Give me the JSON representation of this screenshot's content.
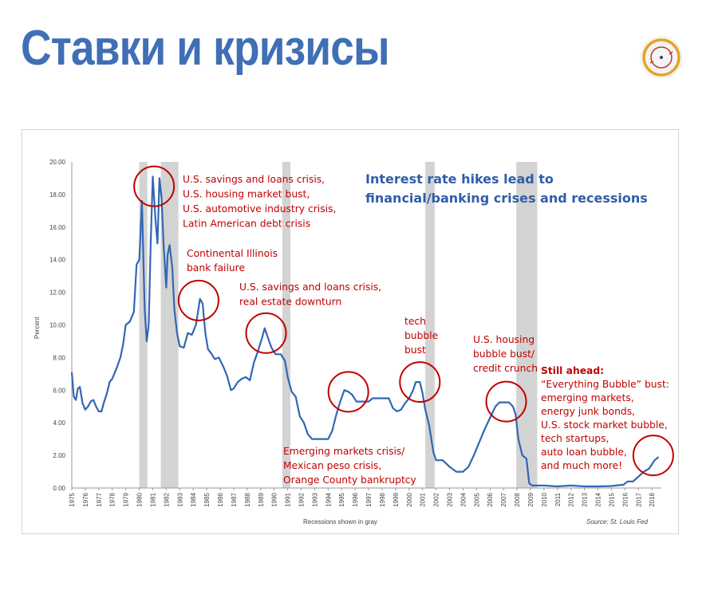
{
  "slide": {
    "title": "Ставки и кризисы"
  },
  "chart_data": {
    "type": "line",
    "title": "Interest rate hikes lead to financial/banking crises and recessions",
    "title_lines": [
      "Interest rate hikes lead to",
      "financial/banking crises and recessions"
    ],
    "ylabel": "Percent",
    "xlabel": "Recessions shown in gray",
    "source": "Source: St. Louis Fed",
    "ylim": [
      0,
      20
    ],
    "xlim": [
      1975,
      2018.7
    ],
    "yticks": [
      "0.00",
      "2.00",
      "4.00",
      "6.00",
      "8.00",
      "10.00",
      "12.00",
      "14.00",
      "16.00",
      "18.00",
      "20.00"
    ],
    "xticks": [
      "1975",
      "1976",
      "1977",
      "1978",
      "1979",
      "1980",
      "1981",
      "1982",
      "1983",
      "1984",
      "1985",
      "1986",
      "1987",
      "1988",
      "1989",
      "1990",
      "1991",
      "1992",
      "1993",
      "1994",
      "1995",
      "1996",
      "1997",
      "1998",
      "1999",
      "2000",
      "2001",
      "2002",
      "2003",
      "2004",
      "2005",
      "2006",
      "2007",
      "2008",
      "2009",
      "2010",
      "2011",
      "2012",
      "2013",
      "2014",
      "2015",
      "2016",
      "2017",
      "2018"
    ],
    "grid": false,
    "recessions": [
      [
        1980.0,
        1980.6
      ],
      [
        1981.6,
        1982.9
      ],
      [
        1990.6,
        1991.2
      ],
      [
        2001.2,
        2001.9
      ],
      [
        2007.95,
        2009.5
      ]
    ],
    "series": [
      {
        "color": "#3366b3",
        "points": [
          [
            1975.0,
            7.1
          ],
          [
            1975.15,
            5.6
          ],
          [
            1975.3,
            5.4
          ],
          [
            1975.45,
            6.1
          ],
          [
            1975.6,
            6.2
          ],
          [
            1975.8,
            5.2
          ],
          [
            1976.0,
            4.8
          ],
          [
            1976.2,
            5.0
          ],
          [
            1976.4,
            5.3
          ],
          [
            1976.6,
            5.4
          ],
          [
            1976.8,
            5.0
          ],
          [
            1977.0,
            4.7
          ],
          [
            1977.2,
            4.7
          ],
          [
            1977.4,
            5.3
          ],
          [
            1977.6,
            5.8
          ],
          [
            1977.8,
            6.5
          ],
          [
            1978.0,
            6.7
          ],
          [
            1978.3,
            7.3
          ],
          [
            1978.6,
            8.0
          ],
          [
            1978.8,
            8.8
          ],
          [
            1979.0,
            10.0
          ],
          [
            1979.3,
            10.2
          ],
          [
            1979.6,
            10.8
          ],
          [
            1979.8,
            13.7
          ],
          [
            1980.0,
            14.0
          ],
          [
            1980.2,
            17.6
          ],
          [
            1980.4,
            11.0
          ],
          [
            1980.55,
            9.0
          ],
          [
            1980.7,
            10.0
          ],
          [
            1980.85,
            15.0
          ],
          [
            1981.0,
            19.1
          ],
          [
            1981.2,
            16.5
          ],
          [
            1981.35,
            15.0
          ],
          [
            1981.5,
            19.0
          ],
          [
            1981.65,
            17.8
          ],
          [
            1981.8,
            15.0
          ],
          [
            1982.0,
            12.3
          ],
          [
            1982.1,
            14.3
          ],
          [
            1982.25,
            14.9
          ],
          [
            1982.45,
            13.5
          ],
          [
            1982.6,
            11.0
          ],
          [
            1982.8,
            9.5
          ],
          [
            1983.0,
            8.7
          ],
          [
            1983.3,
            8.6
          ],
          [
            1983.6,
            9.5
          ],
          [
            1983.9,
            9.4
          ],
          [
            1984.2,
            10.0
          ],
          [
            1984.5,
            11.6
          ],
          [
            1984.7,
            11.3
          ],
          [
            1984.9,
            9.5
          ],
          [
            1985.1,
            8.5
          ],
          [
            1985.3,
            8.3
          ],
          [
            1985.6,
            7.9
          ],
          [
            1985.9,
            8.0
          ],
          [
            1986.2,
            7.5
          ],
          [
            1986.5,
            6.9
          ],
          [
            1986.8,
            6.0
          ],
          [
            1987.0,
            6.1
          ],
          [
            1987.3,
            6.5
          ],
          [
            1987.6,
            6.7
          ],
          [
            1987.9,
            6.8
          ],
          [
            1988.2,
            6.6
          ],
          [
            1988.5,
            7.7
          ],
          [
            1988.8,
            8.4
          ],
          [
            1989.1,
            9.2
          ],
          [
            1989.3,
            9.8
          ],
          [
            1989.5,
            9.3
          ],
          [
            1989.8,
            8.6
          ],
          [
            1990.1,
            8.2
          ],
          [
            1990.5,
            8.2
          ],
          [
            1990.8,
            7.8
          ],
          [
            1991.0,
            6.8
          ],
          [
            1991.3,
            5.9
          ],
          [
            1991.6,
            5.6
          ],
          [
            1991.9,
            4.4
          ],
          [
            1992.2,
            4.0
          ],
          [
            1992.5,
            3.3
          ],
          [
            1992.8,
            3.0
          ],
          [
            1993.2,
            3.0
          ],
          [
            1993.6,
            3.0
          ],
          [
            1994.0,
            3.0
          ],
          [
            1994.3,
            3.5
          ],
          [
            1994.6,
            4.5
          ],
          [
            1994.9,
            5.3
          ],
          [
            1995.2,
            6.0
          ],
          [
            1995.5,
            5.9
          ],
          [
            1995.8,
            5.7
          ],
          [
            1996.1,
            5.3
          ],
          [
            1996.4,
            5.3
          ],
          [
            1996.7,
            5.3
          ],
          [
            1997.0,
            5.3
          ],
          [
            1997.3,
            5.5
          ],
          [
            1997.6,
            5.5
          ],
          [
            1997.9,
            5.5
          ],
          [
            1998.2,
            5.5
          ],
          [
            1998.5,
            5.5
          ],
          [
            1998.8,
            4.9
          ],
          [
            1999.1,
            4.7
          ],
          [
            1999.4,
            4.8
          ],
          [
            1999.7,
            5.2
          ],
          [
            2000.0,
            5.5
          ],
          [
            2000.3,
            6.0
          ],
          [
            2000.5,
            6.5
          ],
          [
            2000.8,
            6.5
          ],
          [
            2001.0,
            5.8
          ],
          [
            2001.2,
            4.8
          ],
          [
            2001.5,
            3.8
          ],
          [
            2001.8,
            2.2
          ],
          [
            2002.0,
            1.7
          ],
          [
            2002.5,
            1.7
          ],
          [
            2003.0,
            1.3
          ],
          [
            2003.5,
            1.0
          ],
          [
            2004.0,
            1.0
          ],
          [
            2004.4,
            1.3
          ],
          [
            2004.8,
            2.0
          ],
          [
            2005.2,
            2.8
          ],
          [
            2005.6,
            3.6
          ],
          [
            2006.0,
            4.3
          ],
          [
            2006.4,
            5.0
          ],
          [
            2006.7,
            5.25
          ],
          [
            2007.0,
            5.25
          ],
          [
            2007.4,
            5.25
          ],
          [
            2007.7,
            5.0
          ],
          [
            2007.9,
            4.5
          ],
          [
            2008.1,
            3.0
          ],
          [
            2008.4,
            2.0
          ],
          [
            2008.7,
            1.8
          ],
          [
            2008.9,
            0.3
          ],
          [
            2009.1,
            0.15
          ],
          [
            2010.0,
            0.15
          ],
          [
            2011.0,
            0.1
          ],
          [
            2012.0,
            0.15
          ],
          [
            2013.0,
            0.1
          ],
          [
            2014.0,
            0.1
          ],
          [
            2015.0,
            0.12
          ],
          [
            2015.9,
            0.2
          ],
          [
            2016.2,
            0.4
          ],
          [
            2016.6,
            0.4
          ],
          [
            2017.0,
            0.7
          ],
          [
            2017.4,
            1.0
          ],
          [
            2017.8,
            1.2
          ],
          [
            2018.2,
            1.7
          ],
          [
            2018.5,
            1.9
          ]
        ]
      }
    ],
    "annotations": [
      {
        "id": "savings-1981",
        "lines": [
          "U.S. savings and loans crisis,",
          "U.S. housing market bust,",
          "U.S. automotive industry crisis,",
          "Latin American debt crisis"
        ]
      },
      {
        "id": "continental",
        "lines": [
          "Continental Illinois",
          "bank failure"
        ]
      },
      {
        "id": "savings-1989",
        "lines": [
          "U.S. savings and loans crisis,",
          "real estate downturn"
        ]
      },
      {
        "id": "emerging-1995",
        "lines": [
          "Emerging markets crisis/",
          "Mexican peso crisis,",
          "Orange County bankruptcy"
        ]
      },
      {
        "id": "tech",
        "lines": [
          "tech",
          "bubble",
          "bust"
        ]
      },
      {
        "id": "housing",
        "lines": [
          "U.S. housing",
          "bubble bust/",
          "credit crunch"
        ]
      },
      {
        "id": "still-ahead",
        "heading": "Still ahead:",
        "lines": [
          "“Everything Bubble” bust:",
          "emerging markets,",
          "energy junk bonds,",
          "U.S. stock market bubble,",
          "tech startups,",
          "auto loan bubble,",
          "and much more!"
        ]
      }
    ],
    "highlight_circles": [
      {
        "x": 1981.1,
        "y": 18.5
      },
      {
        "x": 1984.4,
        "y": 11.5
      },
      {
        "x": 1989.4,
        "y": 9.5
      },
      {
        "x": 1995.5,
        "y": 5.9
      },
      {
        "x": 2000.8,
        "y": 6.5
      },
      {
        "x": 2007.2,
        "y": 5.3
      },
      {
        "x": 2018.1,
        "y": 2.0
      }
    ],
    "colors": {
      "line": "#3366b3",
      "recession": "#d3d3d3",
      "annotation": "#c00000",
      "circle": "#c00000",
      "title": "#2f5da8"
    }
  }
}
